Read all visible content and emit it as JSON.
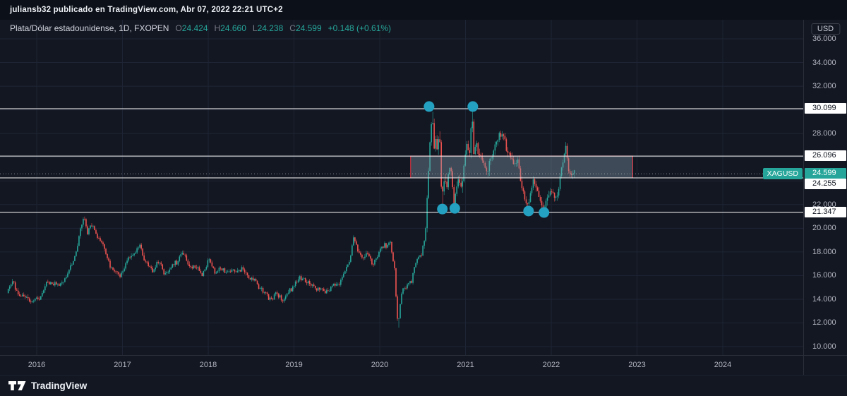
{
  "topbar": {
    "text": "juliansb32 publicado en TradingView.com, Abr 07, 2022 22:21 UTC+2"
  },
  "legend": {
    "symbol_title": "Plata/Dólar estadounidense, 1D, FXOPEN",
    "ohlc": [
      {
        "label": "O",
        "value": "24.424"
      },
      {
        "label": "H",
        "value": "24.660"
      },
      {
        "label": "L",
        "value": "24.238"
      },
      {
        "label": "C",
        "value": "24.599"
      }
    ],
    "change": "+0.148 (+0.61%)"
  },
  "price_axis": {
    "currency": "USD",
    "ticks": [
      {
        "value": 36,
        "label": "36.000"
      },
      {
        "value": 34,
        "label": "34.000"
      },
      {
        "value": 32,
        "label": "32.000"
      },
      {
        "value": 28,
        "label": "28.000"
      },
      {
        "value": 22,
        "label": "22.000"
      },
      {
        "value": 20,
        "label": "20.000"
      },
      {
        "value": 18,
        "label": "18.000"
      },
      {
        "value": 16,
        "label": "16.000"
      },
      {
        "value": 14,
        "label": "14.000"
      },
      {
        "value": 12,
        "label": "12.000"
      },
      {
        "value": 10,
        "label": "10.000"
      }
    ],
    "levels": [
      {
        "value": 30.099,
        "label": "30.099",
        "offset": 0
      },
      {
        "value": 26.096,
        "label": "26.096",
        "offset": 0
      },
      {
        "value": 24.255,
        "label": "24.255",
        "offset": 9
      },
      {
        "value": 21.347,
        "label": "21.347",
        "offset": 0
      }
    ],
    "last": {
      "symbol": "XAGUSD",
      "label": "24.599",
      "value": 24.599
    }
  },
  "time_axis": {
    "years": [
      {
        "value": 2016,
        "label": "2016"
      },
      {
        "value": 2017,
        "label": "2017"
      },
      {
        "value": 2018,
        "label": "2018"
      },
      {
        "value": 2019,
        "label": "2019"
      },
      {
        "value": 2020,
        "label": "2020"
      },
      {
        "value": 2021,
        "label": "2021"
      },
      {
        "value": 2022,
        "label": "2022"
      },
      {
        "value": 2023,
        "label": "2023"
      },
      {
        "value": 2024,
        "label": "2024"
      }
    ]
  },
  "footer": {
    "brand": "TradingView"
  },
  "colors": {
    "background": "#131722",
    "topbar_bg": "#0c1018",
    "grid": "#1e2534",
    "axis_text": "#b2b5be",
    "up": "#26a69a",
    "down": "#ef5350",
    "marker": "#24a1c1",
    "level_line": "#ffffff",
    "rect_border": "#f23645",
    "rect_fill": "rgba(134,158,173,0.38)",
    "last_label_bg": "#26a69a",
    "last_line": "rgba(255,255,255,0.5)"
  },
  "chart_data": {
    "type": "candlestick",
    "symbol": "XAGUSD",
    "description": "Plata/Dólar estadounidense",
    "timeframe": "1D",
    "exchange": "FXOPEN",
    "ohlc_last": {
      "open": 24.424,
      "high": 24.66,
      "low": 24.238,
      "close": 24.599,
      "change": 0.148,
      "change_pct": 0.61
    },
    "x_range": [
      2015.572,
      2024.938
    ],
    "y_range": [
      9.286,
      37.61
    ],
    "bars_range": [
      2015.66,
      2022.275
    ],
    "grid": {
      "h": [
        36,
        34,
        32,
        30,
        28,
        26,
        24,
        22,
        20,
        18,
        16,
        14,
        12,
        10
      ],
      "v": [
        2016,
        2017,
        2018,
        2019,
        2020,
        2021,
        2022,
        2023,
        2024
      ]
    },
    "price_levels": [
      30.099,
      26.096,
      24.255,
      21.347
    ],
    "last_price": 24.599,
    "rectangle": {
      "t_start": 2020.36,
      "t_end": 2022.95,
      "p_top": 26.096,
      "p_bottom": 24.255
    },
    "markers": [
      [
        2020.575,
        30.28
      ],
      [
        2021.085,
        30.28
      ],
      [
        2020.73,
        21.62
      ],
      [
        2020.875,
        21.68
      ],
      [
        2021.735,
        21.45
      ],
      [
        2021.915,
        21.33
      ]
    ],
    "anchors": [
      [
        2015.66,
        14.6
      ],
      [
        2015.72,
        15.4
      ],
      [
        2015.8,
        14.5
      ],
      [
        2015.88,
        14.2
      ],
      [
        2015.96,
        13.8
      ],
      [
        2016.04,
        14.15
      ],
      [
        2016.12,
        15.3
      ],
      [
        2016.2,
        15.45
      ],
      [
        2016.28,
        15.1
      ],
      [
        2016.36,
        16.1
      ],
      [
        2016.44,
        17.3
      ],
      [
        2016.52,
        19.8
      ],
      [
        2016.56,
        20.95
      ],
      [
        2016.6,
        19.7
      ],
      [
        2016.64,
        20.3
      ],
      [
        2016.7,
        19.6
      ],
      [
        2016.76,
        18.9
      ],
      [
        2016.82,
        17.6
      ],
      [
        2016.9,
        16.4
      ],
      [
        2016.97,
        15.9
      ],
      [
        2017.05,
        17.0
      ],
      [
        2017.13,
        17.9
      ],
      [
        2017.21,
        18.45
      ],
      [
        2017.28,
        17.2
      ],
      [
        2017.36,
        16.3
      ],
      [
        2017.42,
        17.3
      ],
      [
        2017.5,
        16.1
      ],
      [
        2017.56,
        16.6
      ],
      [
        2017.64,
        17.1
      ],
      [
        2017.7,
        18.1
      ],
      [
        2017.78,
        16.9
      ],
      [
        2017.86,
        16.6
      ],
      [
        2017.94,
        16.2
      ],
      [
        2018.02,
        17.25
      ],
      [
        2018.1,
        16.3
      ],
      [
        2018.18,
        16.55
      ],
      [
        2018.26,
        16.3
      ],
      [
        2018.34,
        16.5
      ],
      [
        2018.42,
        16.35
      ],
      [
        2018.5,
        15.8
      ],
      [
        2018.58,
        15.35
      ],
      [
        2018.66,
        14.5
      ],
      [
        2018.72,
        14.1
      ],
      [
        2018.8,
        14.35
      ],
      [
        2018.88,
        14.0
      ],
      [
        2018.96,
        14.7
      ],
      [
        2019.04,
        15.6
      ],
      [
        2019.12,
        15.8
      ],
      [
        2019.2,
        15.1
      ],
      [
        2019.28,
        14.95
      ],
      [
        2019.36,
        14.6
      ],
      [
        2019.44,
        15.0
      ],
      [
        2019.52,
        15.3
      ],
      [
        2019.6,
        16.3
      ],
      [
        2019.66,
        17.3
      ],
      [
        2019.7,
        19.4
      ],
      [
        2019.74,
        18.2
      ],
      [
        2019.8,
        17.5
      ],
      [
        2019.86,
        17.9
      ],
      [
        2019.92,
        16.9
      ],
      [
        2020.0,
        17.9
      ],
      [
        2020.06,
        18.6
      ],
      [
        2020.13,
        18.7
      ],
      [
        2020.18,
        16.6
      ],
      [
        2020.22,
        11.7
      ],
      [
        2020.26,
        14.4
      ],
      [
        2020.32,
        15.2
      ],
      [
        2020.38,
        15.6
      ],
      [
        2020.44,
        17.4
      ],
      [
        2020.5,
        18.0
      ],
      [
        2020.54,
        19.2
      ],
      [
        2020.575,
        24.6
      ],
      [
        2020.6,
        28.3
      ],
      [
        2020.62,
        29.85
      ],
      [
        2020.645,
        26.6
      ],
      [
        2020.66,
        27.6
      ],
      [
        2020.68,
        26.2
      ],
      [
        2020.7,
        28.1
      ],
      [
        2020.715,
        26.9
      ],
      [
        2020.73,
        22.0
      ],
      [
        2020.76,
        24.6
      ],
      [
        2020.79,
        23.4
      ],
      [
        2020.82,
        25.1
      ],
      [
        2020.85,
        24.2
      ],
      [
        2020.875,
        21.9
      ],
      [
        2020.9,
        23.5
      ],
      [
        2020.93,
        24.3
      ],
      [
        2020.96,
        23.0
      ],
      [
        2021.0,
        26.3
      ],
      [
        2021.03,
        27.4
      ],
      [
        2021.06,
        25.9
      ],
      [
        2021.085,
        30.05
      ],
      [
        2021.1,
        26.2
      ],
      [
        2021.14,
        27.3
      ],
      [
        2021.18,
        26.1
      ],
      [
        2021.22,
        25.3
      ],
      [
        2021.26,
        24.7
      ],
      [
        2021.3,
        25.9
      ],
      [
        2021.34,
        26.2
      ],
      [
        2021.38,
        27.5
      ],
      [
        2021.42,
        28.2
      ],
      [
        2021.46,
        27.4
      ],
      [
        2021.5,
        26.1
      ],
      [
        2021.54,
        26.4
      ],
      [
        2021.58,
        25.2
      ],
      [
        2021.62,
        25.6
      ],
      [
        2021.66,
        23.8
      ],
      [
        2021.7,
        22.6
      ],
      [
        2021.735,
        21.5
      ],
      [
        2021.77,
        23.1
      ],
      [
        2021.8,
        24.3
      ],
      [
        2021.84,
        23.3
      ],
      [
        2021.88,
        22.3
      ],
      [
        2021.915,
        21.5
      ],
      [
        2021.95,
        22.4
      ],
      [
        2021.98,
        23.1
      ],
      [
        2022.02,
        22.9
      ],
      [
        2022.06,
        22.4
      ],
      [
        2022.1,
        23.9
      ],
      [
        2022.14,
        25.3
      ],
      [
        2022.175,
        26.9
      ],
      [
        2022.21,
        25.1
      ],
      [
        2022.24,
        24.3
      ],
      [
        2022.27,
        24.6
      ]
    ]
  }
}
